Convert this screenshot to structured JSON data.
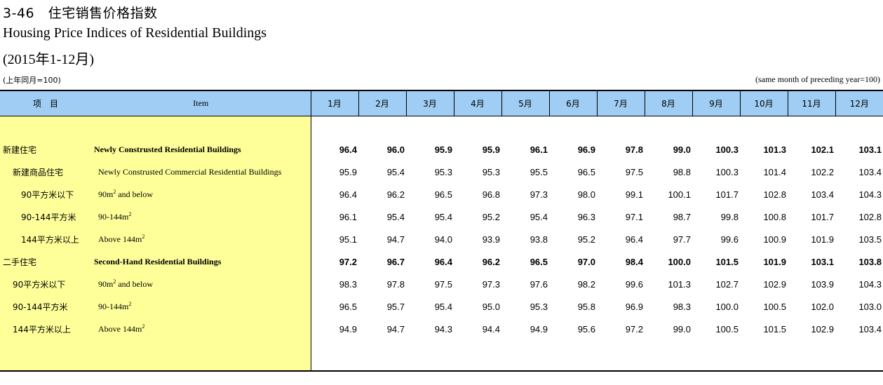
{
  "title_cn": "3-46　住宅销售价格指数",
  "title_en": "Housing Price Indices of Residential Buildings",
  "period": "(2015年1-12月)",
  "note_left": "(上年同月=100)",
  "note_right": "(same month of preceding year=100)",
  "header": {
    "item_cn": "项　目",
    "item_en": "Item",
    "months": [
      "1月",
      "2月",
      "3月",
      "4月",
      "5月",
      "6月",
      "7月",
      "8月",
      "9月",
      "10月",
      "11月",
      "12月"
    ]
  },
  "rows": [
    {
      "cn": "新建住宅",
      "en": "Newly Construsted Residential Buildings",
      "en_sup": "",
      "level": 0,
      "bold": true,
      "values": [
        "96.4",
        "96.0",
        "95.9",
        "95.9",
        "96.1",
        "96.9",
        "97.8",
        "99.0",
        "100.3",
        "101.3",
        "102.1",
        "103.1"
      ]
    },
    {
      "cn": "新建商品住宅",
      "en": "Newly Construsted Commercial Residential Buildings",
      "en_sup": "",
      "level": 1,
      "bold": false,
      "values": [
        "95.9",
        "95.4",
        "95.3",
        "95.3",
        "95.5",
        "96.5",
        "97.5",
        "98.8",
        "100.3",
        "101.4",
        "102.2",
        "103.4"
      ]
    },
    {
      "cn": "90平方米以下",
      "en": "90m",
      "en_sup": "2",
      "en_after": " and below",
      "level": 2,
      "bold": false,
      "values": [
        "96.4",
        "96.2",
        "96.5",
        "96.8",
        "97.3",
        "98.0",
        "99.1",
        "100.1",
        "101.7",
        "102.8",
        "103.4",
        "104.3"
      ]
    },
    {
      "cn": "90-144平方米",
      "en": "90-144m",
      "en_sup": "2",
      "en_after": "",
      "level": 2,
      "bold": false,
      "values": [
        "96.1",
        "95.4",
        "95.4",
        "95.2",
        "95.4",
        "96.3",
        "97.1",
        "98.7",
        "99.8",
        "100.8",
        "101.7",
        "102.8"
      ]
    },
    {
      "cn": "144平方米以上",
      "en": "Above 144m",
      "en_sup": "2",
      "en_after": "",
      "level": 2,
      "bold": false,
      "values": [
        "95.1",
        "94.7",
        "94.0",
        "93.9",
        "93.8",
        "95.2",
        "96.4",
        "97.7",
        "99.6",
        "100.9",
        "101.9",
        "103.5"
      ]
    },
    {
      "cn": "二手住宅",
      "en": "Second-Hand Residential Buildings",
      "en_sup": "",
      "level": 0,
      "bold": true,
      "values": [
        "97.2",
        "96.7",
        "96.4",
        "96.2",
        "96.5",
        "97.0",
        "98.4",
        "100.0",
        "101.5",
        "101.9",
        "103.1",
        "103.8"
      ]
    },
    {
      "cn": "90平方米以下",
      "en": "90m",
      "en_sup": "2",
      "en_after": " and below",
      "level": 1,
      "bold": false,
      "values": [
        "98.3",
        "97.8",
        "97.5",
        "97.3",
        "97.6",
        "98.2",
        "99.6",
        "101.3",
        "102.7",
        "102.9",
        "103.9",
        "104.3"
      ]
    },
    {
      "cn": "90-144平方米",
      "en": "90-144m",
      "en_sup": "2",
      "en_after": "",
      "level": 1,
      "bold": false,
      "values": [
        "96.5",
        "95.7",
        "95.4",
        "95.0",
        "95.3",
        "95.8",
        "96.9",
        "98.3",
        "100.0",
        "100.5",
        "102.0",
        "103.0"
      ]
    },
    {
      "cn": "144平方米以上",
      "en": "Above 144m",
      "en_sup": "2",
      "en_after": "",
      "level": 1,
      "bold": false,
      "values": [
        "94.9",
        "94.7",
        "94.3",
        "94.4",
        "94.9",
        "95.6",
        "97.2",
        "99.0",
        "100.5",
        "101.5",
        "102.9",
        "103.4"
      ]
    }
  ]
}
